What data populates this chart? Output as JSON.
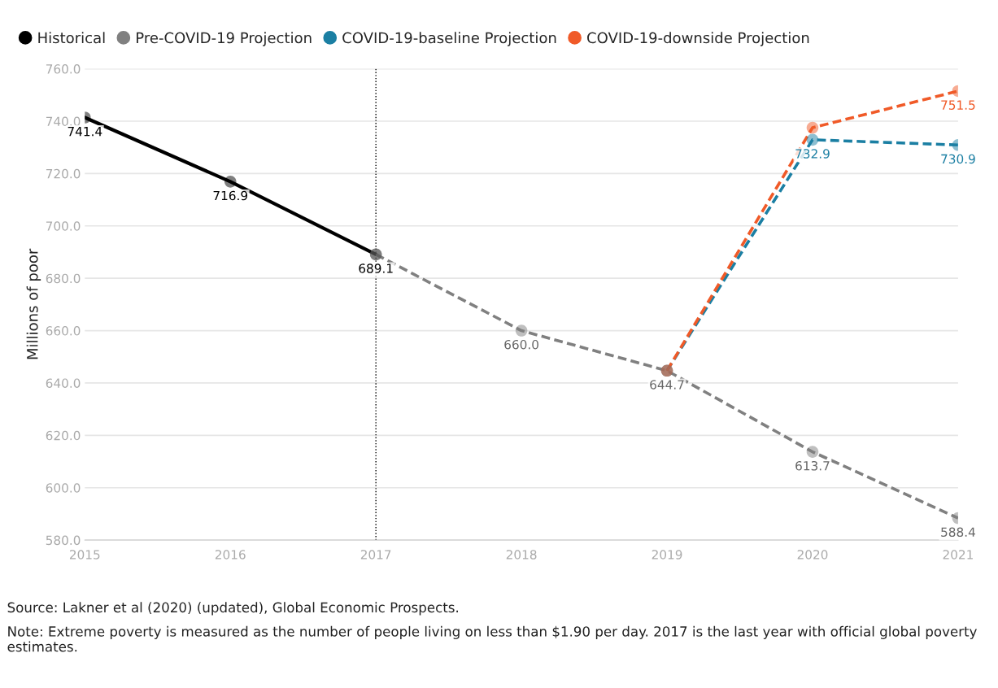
{
  "chart_data": {
    "type": "line",
    "ylabel": "Millions of poor",
    "xlim": [
      2015,
      2021
    ],
    "xticks": [
      2015,
      2016,
      2017,
      2018,
      2019,
      2020,
      2021
    ],
    "ylim": [
      580,
      760
    ],
    "yticks": [
      {
        "value": 580,
        "label": "580.0"
      },
      {
        "value": 600,
        "label": "600.0"
      },
      {
        "value": 620,
        "label": "620.0"
      },
      {
        "value": 640,
        "label": "640.0"
      },
      {
        "value": 660,
        "label": "660.0"
      },
      {
        "value": 680,
        "label": "680.0"
      },
      {
        "value": 700,
        "label": "700.0"
      },
      {
        "value": 720,
        "label": "720.0"
      },
      {
        "value": 740,
        "label": "740.0"
      },
      {
        "value": 760,
        "label": "760.0"
      }
    ],
    "grid": "y",
    "legend": "top left",
    "marker": "circle",
    "series": [
      {
        "name": "Historical",
        "color": "#000000",
        "line_style": "solid",
        "x": [
          2015,
          2016,
          2017
        ],
        "values": [
          741.4,
          716.9,
          689.1
        ],
        "value_labels": [
          "741.4",
          "716.9",
          "689.1"
        ]
      },
      {
        "name": "Pre-COVID-19 Projection",
        "color": "#808080",
        "line_style": "dashed",
        "x": [
          2017,
          2018,
          2019,
          2020,
          2021
        ],
        "values": [
          689.1,
          660.0,
          644.7,
          613.7,
          588.4
        ],
        "value_labels": [
          null,
          "660.0",
          "644.7",
          "613.7",
          "588.4"
        ]
      },
      {
        "name": "COVID-19-baseline Projection",
        "color": "#1b7fa3",
        "line_style": "dashed",
        "x": [
          2019,
          2020,
          2021
        ],
        "values": [
          644.7,
          732.9,
          730.9
        ],
        "value_labels": [
          null,
          "732.9",
          "730.9"
        ]
      },
      {
        "name": "COVID-19-downside Projection",
        "color": "#f05a28",
        "line_style": "dashed",
        "x": [
          2019,
          2020,
          2021
        ],
        "values": [
          644.7,
          737.5,
          751.5
        ],
        "value_labels": [
          null,
          null,
          "751.5"
        ]
      }
    ],
    "ref_lines": [
      {
        "axis": "x",
        "value": 2017,
        "color": "#000000",
        "line_style": "dotted"
      }
    ],
    "annotations": [
      "Source: Lakner et al (2020) (updated), Global Economic Prospects.",
      "Note: Extreme poverty is measured as the number of people living on less than $1.90 per day. 2017 is the last year with official global poverty estimates."
    ]
  }
}
